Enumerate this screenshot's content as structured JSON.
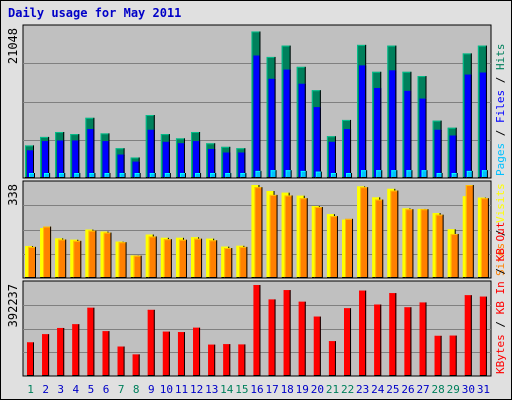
{
  "title": "Daily usage for May 2011",
  "colors": {
    "hits": "#00805c",
    "files": "#0000ff",
    "pages": "#00c0ff",
    "visits": "#ffff00",
    "sites": "#ff8000",
    "kbin": "#ff0000",
    "kbout": "#ff0000",
    "weekday_label": "#0000c8",
    "weekend_label": "#00805c",
    "panel_bg": "#c0c0c0",
    "frame_bg": "#e0e0e0"
  },
  "chart_data": [
    {
      "type": "bar",
      "panel": "top",
      "ymax_label": "21048",
      "ylim": [
        0,
        21048
      ],
      "legend": [
        "Pages",
        "Files",
        "Hits"
      ],
      "legend_separator": " / ",
      "categories": [
        "1",
        "2",
        "3",
        "4",
        "5",
        "6",
        "7",
        "8",
        "9",
        "10",
        "11",
        "12",
        "13",
        "14",
        "15",
        "16",
        "17",
        "18",
        "19",
        "20",
        "21",
        "22",
        "23",
        "24",
        "25",
        "26",
        "27",
        "28",
        "29",
        "30",
        "31"
      ],
      "series": [
        {
          "name": "Hits",
          "values": [
            4600,
            5800,
            6500,
            6200,
            8500,
            6300,
            4200,
            2900,
            8900,
            6200,
            5600,
            6500,
            4900,
            4400,
            4200,
            20700,
            17100,
            18700,
            15700,
            12400,
            5900,
            8200,
            18800,
            15000,
            18700,
            15000,
            14400,
            8100,
            7100,
            17600,
            18700
          ]
        },
        {
          "name": "Files",
          "values": [
            3900,
            5200,
            5300,
            5300,
            6900,
            5200,
            3300,
            2300,
            6800,
            5100,
            4900,
            5200,
            4100,
            3600,
            3600,
            17300,
            14000,
            15300,
            13300,
            10000,
            5100,
            6900,
            15900,
            12700,
            15200,
            12300,
            11200,
            6800,
            6000,
            14600,
            14900
          ]
        },
        {
          "name": "Pages",
          "values": [
            500,
            500,
            500,
            500,
            600,
            500,
            400,
            300,
            600,
            500,
            500,
            500,
            500,
            400,
            400,
            1000,
            1100,
            1100,
            1000,
            900,
            500,
            500,
            1100,
            1100,
            1100,
            1100,
            1100,
            600,
            500,
            1000,
            1100
          ]
        }
      ]
    },
    {
      "type": "bar",
      "panel": "middle",
      "ymax_label": "338",
      "ylim": [
        0,
        338
      ],
      "legend": [
        "Sites",
        "Visits"
      ],
      "legend_separator": " / ",
      "categories": [
        "1",
        "2",
        "3",
        "4",
        "5",
        "6",
        "7",
        "8",
        "9",
        "10",
        "11",
        "12",
        "13",
        "14",
        "15",
        "16",
        "17",
        "18",
        "19",
        "20",
        "21",
        "22",
        "23",
        "24",
        "25",
        "26",
        "27",
        "28",
        "29",
        "30",
        "31"
      ],
      "series": [
        {
          "name": "Visits",
          "values": [
            116,
            181,
            144,
            139,
            176,
            169,
            132,
            82,
            158,
            146,
            146,
            148,
            143,
            114,
            117,
            338,
            316,
            310,
            299,
            261,
            232,
            212,
            333,
            293,
            324,
            253,
            251,
            236,
            177,
            297,
            292
          ]
        },
        {
          "name": "Sites",
          "values": [
            113,
            187,
            140,
            135,
            172,
            165,
            130,
            81,
            151,
            141,
            139,
            143,
            137,
            109,
            113,
            330,
            302,
            300,
            290,
            258,
            225,
            215,
            330,
            285,
            318,
            250,
            250,
            230,
            160,
            338,
            290
          ]
        }
      ]
    },
    {
      "type": "bar",
      "panel": "bottom",
      "ymax_label": "392237",
      "ylim": [
        0,
        392237
      ],
      "legend": [
        "KBytes",
        "KB In",
        "KB Out"
      ],
      "legend_separator": " / ",
      "categories": [
        "1",
        "2",
        "3",
        "4",
        "5",
        "6",
        "7",
        "8",
        "9",
        "10",
        "11",
        "12",
        "13",
        "14",
        "15",
        "16",
        "17",
        "18",
        "19",
        "20",
        "21",
        "22",
        "23",
        "24",
        "25",
        "26",
        "27",
        "28",
        "29",
        "30",
        "31"
      ],
      "series": [
        {
          "name": "KBytes",
          "values": [
            145000,
            180000,
            207000,
            223000,
            294000,
            193000,
            127000,
            93000,
            285000,
            191000,
            189000,
            208000,
            135000,
            137000,
            136000,
            392000,
            330000,
            370000,
            320000,
            256000,
            150000,
            292000,
            368000,
            308000,
            357000,
            296000,
            317000,
            173000,
            174000,
            348000,
            342000
          ]
        }
      ]
    }
  ],
  "day_labels": {
    "weekend_days": [
      1,
      7,
      8,
      14,
      15,
      21,
      22,
      28,
      29
    ]
  }
}
